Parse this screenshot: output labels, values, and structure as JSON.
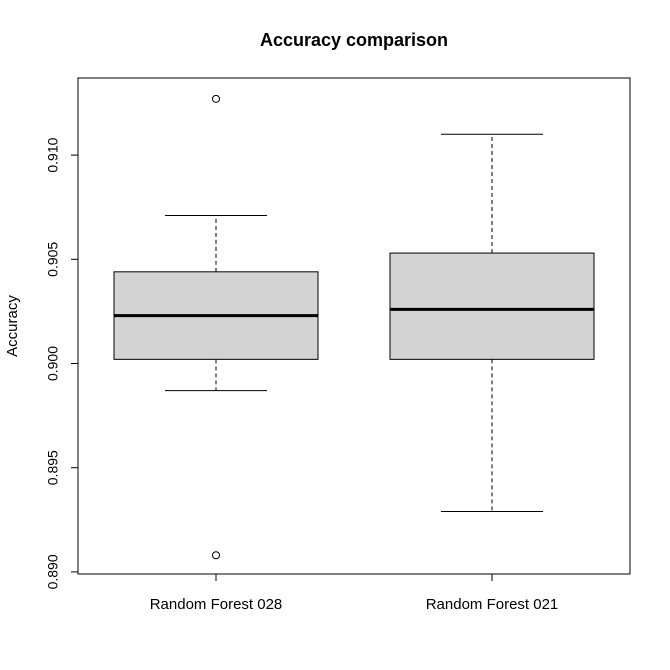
{
  "chart_data": {
    "type": "boxplot",
    "title": "Accuracy comparison",
    "xlabel": "",
    "ylabel": "Accuracy",
    "ylim": [
      0.8899,
      0.9137
    ],
    "yticks": [
      "0.890",
      "0.895",
      "0.900",
      "0.905",
      "0.910"
    ],
    "grid": false,
    "categories": [
      "Random Forest 028",
      "Random Forest 021"
    ],
    "boxes": [
      {
        "category": "Random Forest 028",
        "whisker_low": 0.8987,
        "q1": 0.9002,
        "median": 0.9023,
        "q3": 0.9044,
        "whisker_high": 0.9071,
        "outliers": [
          0.9127,
          0.8908
        ]
      },
      {
        "category": "Random Forest 021",
        "whisker_low": 0.8929,
        "q1": 0.9002,
        "median": 0.9026,
        "q3": 0.9053,
        "whisker_high": 0.911,
        "outliers": []
      }
    ],
    "colors": {
      "box_fill": "#d3d3d3",
      "line": "#000000"
    }
  }
}
